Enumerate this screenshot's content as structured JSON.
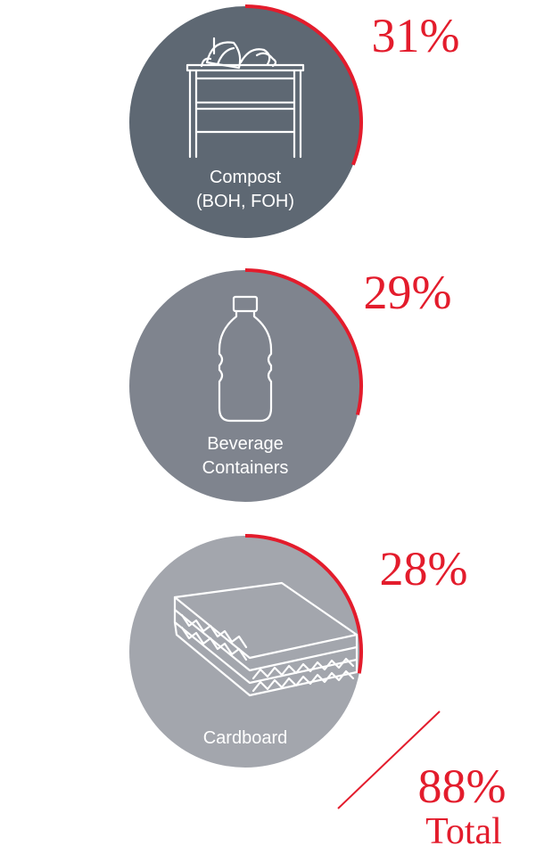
{
  "chart_data": {
    "type": "pie",
    "categories": [
      {
        "label_lines": [
          "Compost",
          "(BOH, FOH)"
        ],
        "value": 31,
        "value_label": "31%",
        "icon": "compost-bin-icon",
        "color": "#5e6873"
      },
      {
        "label_lines": [
          "Beverage",
          "Containers"
        ],
        "value": 29,
        "value_label": "29%",
        "icon": "bottle-icon",
        "color": "#7f848e"
      },
      {
        "label_lines": [
          "Cardboard"
        ],
        "value": 28,
        "value_label": "28%",
        "icon": "cardboard-icon",
        "color": "#a3a6ad"
      }
    ],
    "total": {
      "value": 88,
      "value_label": "88%",
      "label": "Total"
    },
    "accent_color": "#e31c2c"
  }
}
